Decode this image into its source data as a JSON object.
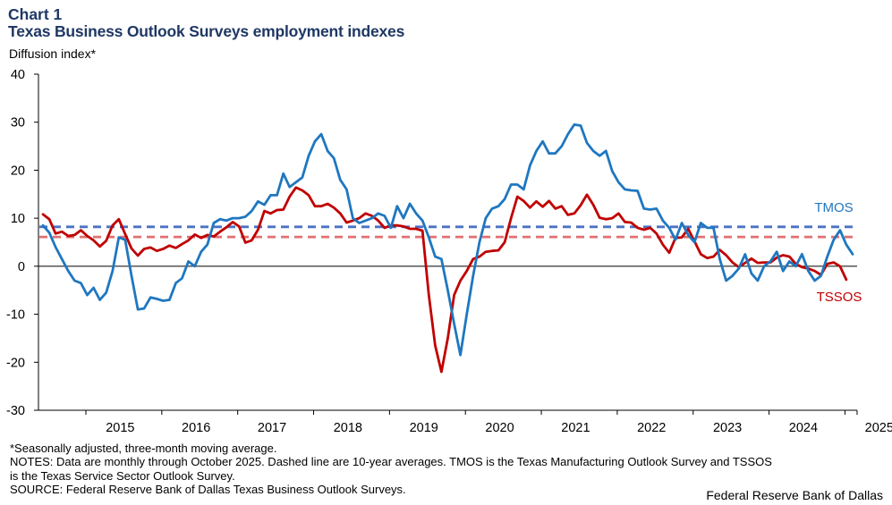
{
  "header": {
    "chart_label": "Chart 1",
    "title": "Texas Business Outlook Surveys employment indexes"
  },
  "footer": {
    "footnote": "*Seasonally adjusted, three-month moving average.",
    "notes_line1": "NOTES: Data are monthly through October 2025. Dashed line are 10-year averages. TMOS is the Texas Manufacturing Outlook Survey and TSSOS",
    "notes_line2": "is the Texas Service Sector Outlook Survey.",
    "source": "SOURCE: Federal Reserve Bank of Dallas Texas Business Outlook Surveys.",
    "credit": "Federal Reserve Bank of Dallas"
  },
  "colors": {
    "tmos": "#1f77c0",
    "tssos": "#c00000",
    "tmos_avg": "#4a72c4",
    "tssos_avg": "#e07070",
    "title": "#1f3864"
  },
  "chart_data": {
    "type": "line",
    "title": "Texas Business Outlook Surveys employment indexes",
    "ylabel": "Diffusion index*",
    "xlabel": "",
    "ylim": [
      -30,
      40
    ],
    "yticks": [
      -30,
      -20,
      -10,
      0,
      10,
      20,
      30,
      40
    ],
    "yticklabels": [
      "-30",
      "-20",
      "-10",
      "0",
      "10",
      "20",
      "30",
      "40"
    ],
    "x_start": "2014-06",
    "x_end": "2025-10",
    "xticklabels": [
      "2015",
      "2016",
      "2017",
      "2018",
      "2019",
      "2020",
      "2021",
      "2022",
      "2023",
      "2024",
      "2025"
    ],
    "grid": false,
    "series": [
      {
        "name": "TMOS",
        "label": "TMOS",
        "values": [
          8.5,
          7,
          4,
          1.5,
          -1,
          -3,
          -3.5,
          -6,
          -4.5,
          -7,
          -5.5,
          -1,
          6,
          5.5,
          -2,
          -9,
          -8.8,
          -6.5,
          -6.8,
          -7.2,
          -7,
          -3.5,
          -2.5,
          1,
          0,
          3,
          4.5,
          9,
          9.8,
          9.5,
          10,
          10,
          10.3,
          11.5,
          13.5,
          12.8,
          14.8,
          14.8,
          19.3,
          16.5,
          17.5,
          18.5,
          23,
          26,
          27.5,
          24,
          22.5,
          18,
          16,
          10,
          9,
          9.5,
          10,
          11,
          10.5,
          8,
          12.5,
          10,
          13,
          11,
          9.5,
          6,
          2,
          1.5,
          -5,
          -12,
          -18.5,
          -10,
          -2,
          5,
          10,
          12,
          12.5,
          14,
          17,
          17,
          16,
          21,
          24,
          26,
          23.5,
          23.5,
          25,
          27.5,
          29.5,
          29.3,
          25.7,
          24,
          23,
          24,
          19.8,
          17.5,
          16,
          15.8,
          15.7,
          12,
          11.8,
          12,
          9.5,
          8,
          5.5,
          9,
          6.5,
          5,
          9,
          8,
          8,
          1.5,
          -3,
          -2,
          -0.5,
          2.5,
          -1.5,
          -3,
          0,
          1,
          3,
          -1,
          1,
          0,
          2.5,
          -1,
          -3,
          -2,
          2,
          5.5,
          7.5,
          4.5,
          2.5
        ],
        "average": 8.2
      },
      {
        "name": "TSSOS",
        "label": "TSSOS",
        "values": [
          10.8,
          9.8,
          6.8,
          7.2,
          6.3,
          6.5,
          7.5,
          6.3,
          5.4,
          4.1,
          5.3,
          8.5,
          9.8,
          6.7,
          3.7,
          2.2,
          3.6,
          3.9,
          3.2,
          3.6,
          4.3,
          3.8,
          4.6,
          5.4,
          6.6,
          5.9,
          6.5,
          6.2,
          7.2,
          8.1,
          9.2,
          8.3,
          4.9,
          5.4,
          7.6,
          11.5,
          11,
          11.7,
          11.8,
          14.5,
          16.4,
          15.8,
          14.8,
          12.5,
          12.5,
          13,
          12.2,
          11,
          9.1,
          9.5,
          10,
          11,
          10.5,
          9.5,
          8,
          8.5,
          8.5,
          8.3,
          7.8,
          7.8,
          7.4,
          -6,
          -16.5,
          -22,
          -15,
          -6,
          -3,
          -1,
          1.5,
          2,
          3,
          3.2,
          3.3,
          5,
          10,
          14.5,
          13.6,
          12.2,
          13.5,
          12.4,
          13.6,
          12,
          12.5,
          10.7,
          11,
          12.7,
          14.9,
          12.8,
          10.1,
          9.8,
          10,
          11,
          9.2,
          9.1,
          8,
          7.6,
          8,
          6.8,
          4.5,
          2.8,
          5.9,
          6,
          7.8,
          5.2,
          2.5,
          1.7,
          2,
          3.4,
          2.3,
          0.8,
          -0.2,
          0.7,
          1.6,
          0.7,
          0.8,
          0.8,
          1.8,
          2.3,
          2,
          0.5,
          -0.2,
          -0.5,
          -1,
          -1.8,
          0.5,
          0.8,
          0,
          -2.8
        ],
        "average": 6.1
      }
    ]
  }
}
